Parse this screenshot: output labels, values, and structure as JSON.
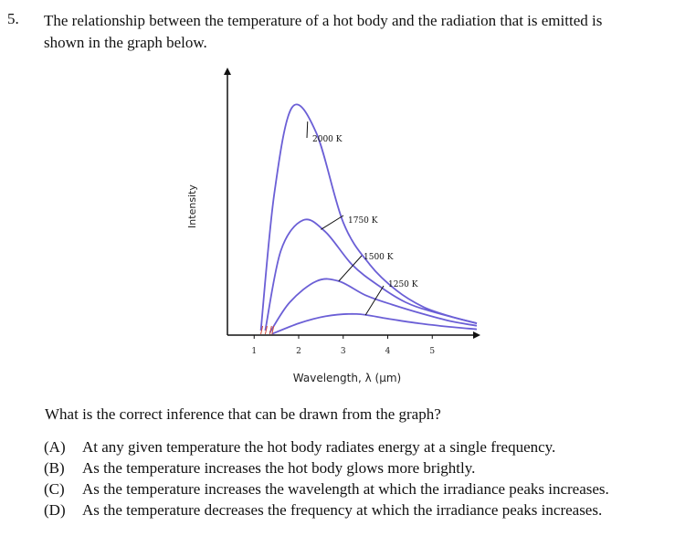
{
  "question": {
    "number": "5.",
    "stem_line1": "The relationship between the temperature of a hot body and the radiation that is emitted is",
    "stem_line2": "shown in the graph below.",
    "prompt": "What is the correct inference that can be drawn from the graph?",
    "options": [
      {
        "letter": "(A)",
        "text": "At any given temperature the hot body radiates energy at a single frequency."
      },
      {
        "letter": "(B)",
        "text": "As the temperature increases the hot body glows more brightly."
      },
      {
        "letter": "(C)",
        "text": "As the temperature increases the wavelength at which the irradiance peaks increases."
      },
      {
        "letter": "(D)",
        "text": "As the temperature decreases the frequency at which the irradiance peaks increases."
      }
    ]
  },
  "chart_data": {
    "type": "line",
    "xlabel": "Wavelength, λ (µm)",
    "ylabel": "Intensity",
    "x_ticks": [
      "1",
      "2",
      "3",
      "4",
      "5"
    ],
    "xlim": [
      0.4,
      6.0
    ],
    "ylim": [
      0,
      100
    ],
    "curve_color": "#6b5fd6",
    "series": [
      {
        "name": "2000 K",
        "x": [
          1.15,
          1.45,
          1.85,
          2.4,
          3.0,
          3.6,
          4.2,
          4.8,
          5.4,
          6.0
        ],
        "y": [
          2,
          60,
          97,
          86,
          48,
          30,
          19,
          12,
          8,
          5
        ]
      },
      {
        "name": "1750 K",
        "x": [
          1.25,
          1.6,
          2.1,
          2.6,
          3.2,
          3.8,
          4.4,
          5.0,
          6.0
        ],
        "y": [
          2,
          36,
          49,
          44,
          30,
          21,
          14,
          10,
          5
        ]
      },
      {
        "name": "1500 K",
        "x": [
          1.35,
          1.8,
          2.4,
          2.9,
          3.5,
          4.1,
          4.8,
          5.4,
          6.0
        ],
        "y": [
          1,
          14,
          23,
          23,
          17,
          13,
          9,
          6,
          4
        ]
      },
      {
        "name": "1250 K",
        "x": [
          1.4,
          2.0,
          2.6,
          3.3,
          4.0,
          4.7,
          5.4,
          6.0
        ],
        "y": [
          0.5,
          5,
          8,
          9,
          7,
          5,
          3.5,
          2.5
        ]
      }
    ]
  }
}
